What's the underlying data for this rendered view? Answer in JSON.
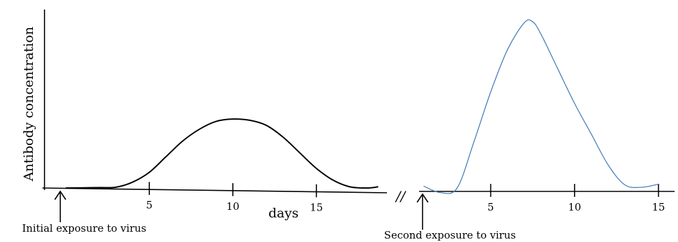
{
  "chart_data": {
    "type": "line",
    "ylabel": "Antibody concentration",
    "xlabel": "days",
    "axis_break": "//",
    "colors": {
      "primary": "#000000",
      "secondary": "#4a7ebb"
    },
    "segments": [
      {
        "name": "primary-response",
        "color": "#000000",
        "tick_labels": [
          "5",
          "10",
          "15"
        ],
        "points": [
          {
            "x": 0,
            "y": 0
          },
          {
            "x": 2,
            "y": 0.1
          },
          {
            "x": 3,
            "y": 0.2
          },
          {
            "x": 4,
            "y": 1.5
          },
          {
            "x": 5,
            "y": 4
          },
          {
            "x": 6,
            "y": 8
          },
          {
            "x": 7,
            "y": 12
          },
          {
            "x": 8,
            "y": 15
          },
          {
            "x": 9,
            "y": 17
          },
          {
            "x": 10,
            "y": 17.6
          },
          {
            "x": 11,
            "y": 17.3
          },
          {
            "x": 12,
            "y": 16
          },
          {
            "x": 13,
            "y": 13
          },
          {
            "x": 14,
            "y": 9
          },
          {
            "x": 15,
            "y": 5
          },
          {
            "x": 16,
            "y": 2
          },
          {
            "x": 17,
            "y": 0.3
          },
          {
            "x": 18,
            "y": 0
          },
          {
            "x": 18.7,
            "y": 0.3
          }
        ]
      },
      {
        "name": "secondary-response",
        "color": "#4a7ebb",
        "tick_labels": [
          "5",
          "10",
          "15"
        ],
        "points": [
          {
            "x": 1,
            "y": 0.5
          },
          {
            "x": 2,
            "y": -1.2
          },
          {
            "x": 3,
            "y": 0
          },
          {
            "x": 4,
            "y": 12
          },
          {
            "x": 5,
            "y": 25
          },
          {
            "x": 6,
            "y": 36
          },
          {
            "x": 7,
            "y": 43
          },
          {
            "x": 7.5,
            "y": 43.3
          },
          {
            "x": 8,
            "y": 40
          },
          {
            "x": 9,
            "y": 31
          },
          {
            "x": 10,
            "y": 22
          },
          {
            "x": 11,
            "y": 14
          },
          {
            "x": 12,
            "y": 6
          },
          {
            "x": 13,
            "y": 0.8
          },
          {
            "x": 14,
            "y": 0.2
          },
          {
            "x": 15,
            "y": 1
          }
        ]
      }
    ],
    "annotations": [
      {
        "text": "Initial exposure to virus",
        "segment": 0,
        "x": -1
      },
      {
        "text": "Second exposure to virus",
        "segment": 1,
        "x": -1
      }
    ]
  }
}
